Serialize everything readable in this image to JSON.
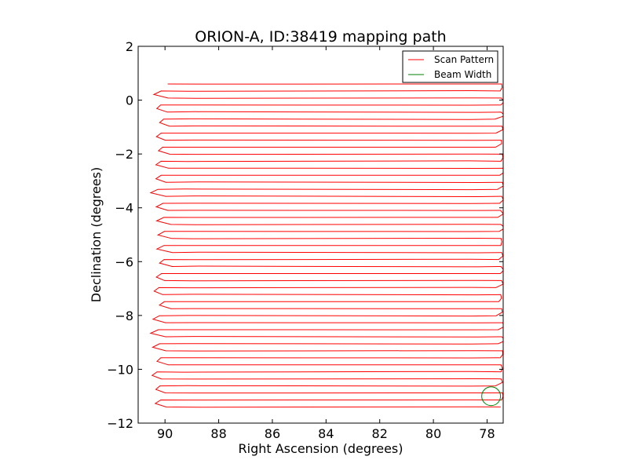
{
  "chart_data": {
    "type": "line",
    "title": "ORION-A, ID:38419 mapping path",
    "xlabel": "Right Ascension (degrees)",
    "ylabel": "Declination (degrees)",
    "xlim": [
      91.0,
      77.4
    ],
    "ylim": [
      -12,
      2
    ],
    "x_inverted": true,
    "xticks": [
      90,
      88,
      86,
      84,
      82,
      80,
      78
    ],
    "yticks": [
      2,
      0,
      -2,
      -4,
      -6,
      -8,
      -10,
      -12
    ],
    "grid": false,
    "legend": {
      "placement": "top-right",
      "entries": [
        "Scan Pattern",
        "Beam Width"
      ]
    },
    "series": [
      {
        "name": "Scan Pattern",
        "color": "#ff0000",
        "ra_east": 89.9,
        "ra_west": 77.5,
        "dec_start": 0.6,
        "dec_end": -11.4,
        "row_count": 47
      },
      {
        "name": "Beam Width",
        "color": "#008000",
        "shape": "circle",
        "center_ra": 77.85,
        "center_dec": -11.0,
        "radius_deg": 0.35
      }
    ]
  }
}
